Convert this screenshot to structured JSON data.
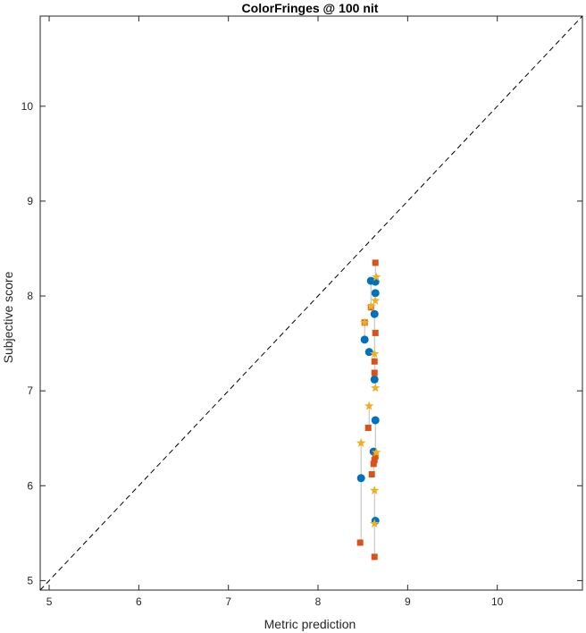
{
  "chart_data": {
    "type": "scatter",
    "title": "ColorFringes @ 100 nit",
    "xlabel": "Metric prediction",
    "ylabel": "Subjective score",
    "xlim": [
      4.9,
      10.95
    ],
    "ylim": [
      4.9,
      10.95
    ],
    "x_ticks": [
      5,
      6,
      7,
      8,
      9,
      10
    ],
    "y_ticks": [
      5,
      6,
      7,
      8,
      9,
      10
    ],
    "grid": false,
    "identity_line": true,
    "colors": {
      "series_1": "#0072BD",
      "series_2": "#D95319",
      "series_3": "#EDB120",
      "connector": "#BEBEBE",
      "diagonal": "#000000",
      "axis": "#262626"
    },
    "series": [
      {
        "marker": "circle",
        "color": "#0072BD",
        "points": [
          {
            "x": 8.59,
            "y": 8.16
          },
          {
            "x": 8.64,
            "y": 8.15
          },
          {
            "x": 8.64,
            "y": 8.03
          },
          {
            "x": 8.63,
            "y": 7.81
          },
          {
            "x": 8.52,
            "y": 7.54
          },
          {
            "x": 8.57,
            "y": 7.41
          },
          {
            "x": 8.63,
            "y": 7.12
          },
          {
            "x": 8.64,
            "y": 6.69
          },
          {
            "x": 8.62,
            "y": 6.36
          },
          {
            "x": 8.48,
            "y": 6.08
          },
          {
            "x": 8.64,
            "y": 5.63
          }
        ]
      },
      {
        "marker": "square",
        "color": "#D95319",
        "points": [
          {
            "x": 8.64,
            "y": 8.35
          },
          {
            "x": 8.59,
            "y": 7.88
          },
          {
            "x": 8.52,
            "y": 7.72
          },
          {
            "x": 8.64,
            "y": 7.61
          },
          {
            "x": 8.63,
            "y": 7.31
          },
          {
            "x": 8.63,
            "y": 7.19
          },
          {
            "x": 8.56,
            "y": 6.61
          },
          {
            "x": 8.64,
            "y": 6.31
          },
          {
            "x": 8.63,
            "y": 6.27
          },
          {
            "x": 8.62,
            "y": 6.23
          },
          {
            "x": 8.6,
            "y": 6.12
          },
          {
            "x": 8.47,
            "y": 5.4
          },
          {
            "x": 8.63,
            "y": 5.25
          }
        ]
      },
      {
        "marker": "star",
        "color": "#EDB120",
        "points": [
          {
            "x": 8.65,
            "y": 8.2
          },
          {
            "x": 8.64,
            "y": 7.95
          },
          {
            "x": 8.59,
            "y": 7.89
          },
          {
            "x": 8.52,
            "y": 7.72
          },
          {
            "x": 8.63,
            "y": 7.39
          },
          {
            "x": 8.64,
            "y": 7.03
          },
          {
            "x": 8.57,
            "y": 6.84
          },
          {
            "x": 8.48,
            "y": 6.45
          },
          {
            "x": 8.65,
            "y": 6.35
          },
          {
            "x": 8.63,
            "y": 5.95
          },
          {
            "x": 8.63,
            "y": 5.6
          }
        ]
      }
    ],
    "connectors": [
      {
        "x": 8.64,
        "y1": 8.35,
        "y2": 8.15
      },
      {
        "x": 8.59,
        "y1": 8.16,
        "y2": 7.88
      },
      {
        "x": 8.64,
        "y1": 8.03,
        "y2": 7.95
      },
      {
        "x": 8.52,
        "y1": 7.72,
        "y2": 7.54
      },
      {
        "x": 8.57,
        "y1": 7.41,
        "y2": 7.41
      },
      {
        "x": 8.63,
        "y1": 7.81,
        "y2": 7.12
      },
      {
        "x": 8.64,
        "y1": 6.69,
        "y2": 6.31
      },
      {
        "x": 8.62,
        "y1": 6.36,
        "y2": 6.12
      },
      {
        "x": 8.57,
        "y1": 6.84,
        "y2": 6.61
      },
      {
        "x": 8.48,
        "y1": 6.45,
        "y2": 6.08
      },
      {
        "x": 8.48,
        "y1": 6.08,
        "y2": 5.4
      },
      {
        "x": 8.63,
        "y1": 5.95,
        "y2": 5.25
      }
    ]
  }
}
